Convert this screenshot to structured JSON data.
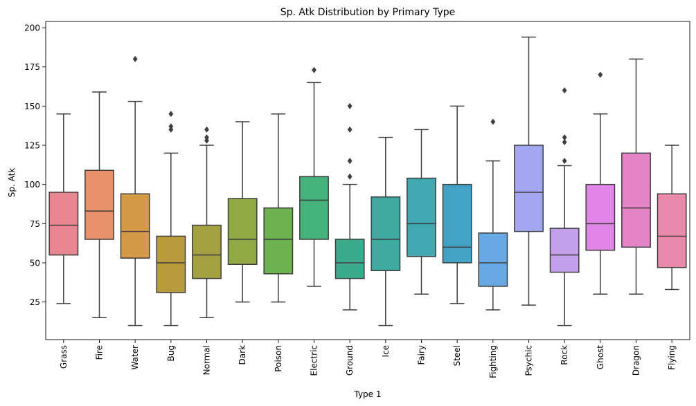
{
  "chart_data": {
    "type": "box",
    "title": "Sp. Atk Distribution by Primary Type",
    "xlabel": "Type 1",
    "ylabel": "Sp. Atk",
    "ylim": [
      1,
      204
    ],
    "yticks": [
      25,
      50,
      75,
      100,
      125,
      150,
      175,
      200
    ],
    "grid": false,
    "legend": "none",
    "categories": [
      "Grass",
      "Fire",
      "Water",
      "Bug",
      "Normal",
      "Dark",
      "Poison",
      "Electric",
      "Ground",
      "Ice",
      "Fairy",
      "Steel",
      "Fighting",
      "Psychic",
      "Rock",
      "Ghost",
      "Dragon",
      "Flying"
    ],
    "colors": [
      "#e8878f",
      "#e8916a",
      "#d49a48",
      "#b89b3c",
      "#a2a040",
      "#91a945",
      "#6cb34f",
      "#47b37c",
      "#3bab8d",
      "#3faaa1",
      "#41a8b2",
      "#44a2c5",
      "#66a9e4",
      "#a3a7ef",
      "#c4a0ea",
      "#e086e6",
      "#e585c8",
      "#e98aac"
    ],
    "boxes": [
      {
        "min": 24,
        "q1": 55,
        "median": 74,
        "q3": 95,
        "max": 145,
        "outliers": []
      },
      {
        "min": 15,
        "q1": 65,
        "median": 83,
        "q3": 109,
        "max": 159,
        "outliers": []
      },
      {
        "min": 10,
        "q1": 53,
        "median": 70,
        "q3": 94,
        "max": 153,
        "outliers": [
          180
        ]
      },
      {
        "min": 10,
        "q1": 31,
        "median": 50,
        "q3": 67,
        "max": 120,
        "outliers": [
          135,
          137,
          145
        ]
      },
      {
        "min": 15,
        "q1": 40,
        "median": 55,
        "q3": 74,
        "max": 125,
        "outliers": [
          128,
          130,
          135
        ]
      },
      {
        "min": 25,
        "q1": 49,
        "median": 65,
        "q3": 91,
        "max": 140,
        "outliers": []
      },
      {
        "min": 25,
        "q1": 43,
        "median": 65,
        "q3": 85,
        "max": 145,
        "outliers": []
      },
      {
        "min": 35,
        "q1": 65,
        "median": 90,
        "q3": 105,
        "max": 165,
        "outliers": [
          173
        ]
      },
      {
        "min": 20,
        "q1": 40,
        "median": 50,
        "q3": 65,
        "max": 100,
        "outliers": [
          105,
          115,
          135,
          150
        ]
      },
      {
        "min": 10,
        "q1": 45,
        "median": 65,
        "q3": 92,
        "max": 130,
        "outliers": []
      },
      {
        "min": 30,
        "q1": 54,
        "median": 75,
        "q3": 104,
        "max": 135,
        "outliers": []
      },
      {
        "min": 24,
        "q1": 50,
        "median": 60,
        "q3": 100,
        "max": 150,
        "outliers": []
      },
      {
        "min": 20,
        "q1": 35,
        "median": 50,
        "q3": 69,
        "max": 115,
        "outliers": [
          140
        ]
      },
      {
        "min": 23,
        "q1": 70,
        "median": 95,
        "q3": 125,
        "max": 194,
        "outliers": []
      },
      {
        "min": 10,
        "q1": 44,
        "median": 55,
        "q3": 72,
        "max": 112,
        "outliers": [
          115,
          127,
          130,
          160
        ]
      },
      {
        "min": 30,
        "q1": 58,
        "median": 75,
        "q3": 100,
        "max": 145,
        "outliers": [
          170
        ]
      },
      {
        "min": 30,
        "q1": 60,
        "median": 85,
        "q3": 120,
        "max": 180,
        "outliers": []
      },
      {
        "min": 33,
        "q1": 47,
        "median": 67,
        "q3": 94,
        "max": 125,
        "outliers": []
      }
    ]
  }
}
